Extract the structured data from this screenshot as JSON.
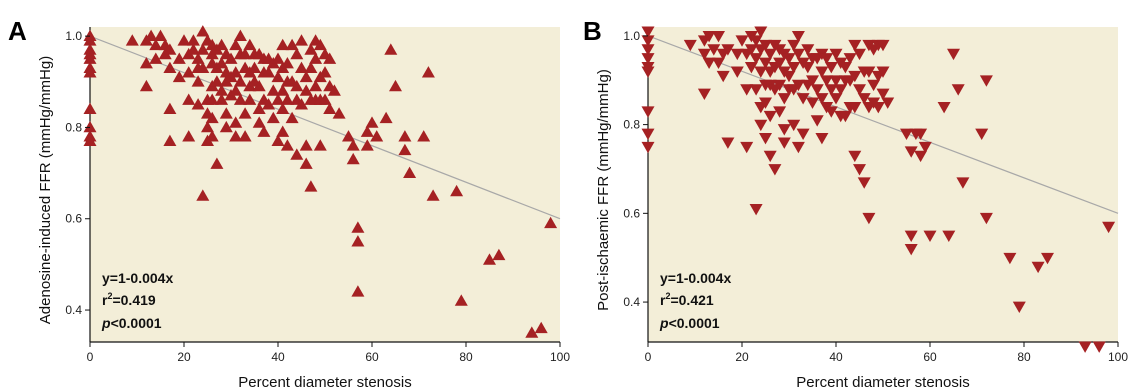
{
  "chart_data": [
    {
      "panel_label": "A",
      "type": "scatter",
      "marker": "triangle-up",
      "xlabel": "Percent diameter stenosis",
      "ylabel": "Adenosine-induced FFR (mmHg/mmHg)",
      "xlim": [
        0,
        100
      ],
      "ylim": [
        0.33,
        1.02
      ],
      "xticks": [
        "0",
        "20",
        "40",
        "60",
        "80",
        "100"
      ],
      "yticks": [
        "0.4",
        "0.6",
        "0.8",
        "1.0"
      ],
      "fit_line": {
        "intercept": 1.0,
        "slope": -0.004
      },
      "annotation": {
        "equation": "y=1-0.004x",
        "r_prefix": "r",
        "r_exp": "2",
        "r_value": "=0.419",
        "p_italic": "p",
        "p_value": "<0.0001"
      },
      "background_color": "#f3eed8",
      "marker_color": "#a52123",
      "line_color": "#a8a8a8",
      "points": [
        [
          0,
          1.0
        ],
        [
          0,
          0.99
        ],
        [
          0,
          0.97
        ],
        [
          0,
          0.96
        ],
        [
          0,
          0.95
        ],
        [
          0,
          0.93
        ],
        [
          0,
          0.92
        ],
        [
          0,
          0.84
        ],
        [
          0,
          0.8
        ],
        [
          0,
          0.78
        ],
        [
          0,
          0.77
        ],
        [
          9,
          0.99
        ],
        [
          12,
          0.99
        ],
        [
          12,
          0.94
        ],
        [
          12,
          0.89
        ],
        [
          13,
          1.0
        ],
        [
          14,
          0.98
        ],
        [
          14,
          0.95
        ],
        [
          15,
          1.0
        ],
        [
          16,
          0.98
        ],
        [
          16,
          0.96
        ],
        [
          17,
          0.97
        ],
        [
          17,
          0.93
        ],
        [
          17,
          0.84
        ],
        [
          17,
          0.77
        ],
        [
          19,
          0.95
        ],
        [
          19,
          0.91
        ],
        [
          20,
          0.99
        ],
        [
          21,
          0.96
        ],
        [
          21,
          0.92
        ],
        [
          21,
          0.86
        ],
        [
          21,
          0.78
        ],
        [
          22,
          0.99
        ],
        [
          22,
          0.97
        ],
        [
          23,
          0.95
        ],
        [
          23,
          0.93
        ],
        [
          23,
          0.9
        ],
        [
          23,
          0.85
        ],
        [
          24,
          1.01
        ],
        [
          24,
          0.97
        ],
        [
          24,
          0.93
        ],
        [
          24,
          0.65
        ],
        [
          25,
          0.99
        ],
        [
          25,
          0.86
        ],
        [
          25,
          0.83
        ],
        [
          25,
          0.8
        ],
        [
          25,
          0.77
        ],
        [
          26,
          0.98
        ],
        [
          26,
          0.96
        ],
        [
          26,
          0.94
        ],
        [
          26,
          0.89
        ],
        [
          26,
          0.86
        ],
        [
          26,
          0.82
        ],
        [
          26,
          0.78
        ],
        [
          27,
          0.97
        ],
        [
          27,
          0.93
        ],
        [
          27,
          0.9
        ],
        [
          27,
          0.72
        ],
        [
          28,
          0.98
        ],
        [
          28,
          0.94
        ],
        [
          28,
          0.88
        ],
        [
          28,
          0.86
        ],
        [
          29,
          0.96
        ],
        [
          29,
          0.92
        ],
        [
          29,
          0.9
        ],
        [
          29,
          0.83
        ],
        [
          29,
          0.8
        ],
        [
          30,
          0.95
        ],
        [
          30,
          0.91
        ],
        [
          30,
          0.87
        ],
        [
          31,
          0.98
        ],
        [
          31,
          0.92
        ],
        [
          31,
          0.88
        ],
        [
          31,
          0.81
        ],
        [
          31,
          0.78
        ],
        [
          32,
          1.0
        ],
        [
          32,
          0.96
        ],
        [
          32,
          0.9
        ],
        [
          32,
          0.86
        ],
        [
          33,
          0.96
        ],
        [
          33,
          0.93
        ],
        [
          33,
          0.83
        ],
        [
          33,
          0.78
        ],
        [
          34,
          0.98
        ],
        [
          34,
          0.92
        ],
        [
          34,
          0.89
        ],
        [
          34,
          0.86
        ],
        [
          35,
          0.96
        ],
        [
          35,
          0.93
        ],
        [
          35,
          0.9
        ],
        [
          36,
          0.96
        ],
        [
          36,
          0.89
        ],
        [
          36,
          0.84
        ],
        [
          36,
          0.81
        ],
        [
          37,
          0.95
        ],
        [
          37,
          0.92
        ],
        [
          37,
          0.86
        ],
        [
          37,
          0.79
        ],
        [
          38,
          0.95
        ],
        [
          38,
          0.92
        ],
        [
          38,
          0.85
        ],
        [
          39,
          0.94
        ],
        [
          39,
          0.88
        ],
        [
          39,
          0.82
        ],
        [
          40,
          0.95
        ],
        [
          40,
          0.91
        ],
        [
          40,
          0.86
        ],
        [
          40,
          0.77
        ],
        [
          41,
          0.98
        ],
        [
          41,
          0.93
        ],
        [
          41,
          0.88
        ],
        [
          41,
          0.84
        ],
        [
          41,
          0.79
        ],
        [
          42,
          0.94
        ],
        [
          42,
          0.9
        ],
        [
          42,
          0.86
        ],
        [
          42,
          0.76
        ],
        [
          43,
          0.98
        ],
        [
          43,
          0.9
        ],
        [
          43,
          0.82
        ],
        [
          44,
          0.96
        ],
        [
          44,
          0.89
        ],
        [
          44,
          0.86
        ],
        [
          44,
          0.74
        ],
        [
          45,
          0.99
        ],
        [
          45,
          0.93
        ],
        [
          45,
          0.85
        ],
        [
          46,
          0.91
        ],
        [
          46,
          0.88
        ],
        [
          46,
          0.76
        ],
        [
          46,
          0.72
        ],
        [
          47,
          0.97
        ],
        [
          47,
          0.93
        ],
        [
          47,
          0.86
        ],
        [
          47,
          0.67
        ],
        [
          48,
          0.99
        ],
        [
          48,
          0.95
        ],
        [
          48,
          0.89
        ],
        [
          48,
          0.86
        ],
        [
          49,
          0.98
        ],
        [
          49,
          0.91
        ],
        [
          49,
          0.86
        ],
        [
          49,
          0.76
        ],
        [
          50,
          0.96
        ],
        [
          50,
          0.92
        ],
        [
          50,
          0.86
        ],
        [
          51,
          0.95
        ],
        [
          51,
          0.89
        ],
        [
          51,
          0.84
        ],
        [
          52,
          0.88
        ],
        [
          53,
          0.83
        ],
        [
          55,
          0.78
        ],
        [
          56,
          0.76
        ],
        [
          56,
          0.73
        ],
        [
          57,
          0.58
        ],
        [
          57,
          0.55
        ],
        [
          57,
          0.44
        ],
        [
          59,
          0.79
        ],
        [
          59,
          0.76
        ],
        [
          60,
          0.81
        ],
        [
          61,
          0.78
        ],
        [
          63,
          0.82
        ],
        [
          64,
          0.97
        ],
        [
          65,
          0.89
        ],
        [
          67,
          0.78
        ],
        [
          67,
          0.75
        ],
        [
          68,
          0.7
        ],
        [
          71,
          0.78
        ],
        [
          72,
          0.92
        ],
        [
          73,
          0.65
        ],
        [
          78,
          0.66
        ],
        [
          79,
          0.42
        ],
        [
          85,
          0.51
        ],
        [
          87,
          0.52
        ],
        [
          94,
          0.35
        ],
        [
          96,
          0.36
        ],
        [
          98,
          0.59
        ]
      ]
    },
    {
      "panel_label": "B",
      "type": "scatter",
      "marker": "triangle-down",
      "xlabel": "Percent diameter stenosis",
      "ylabel": "Post-ischaemic FFR (mmHg/mmHg)",
      "xlim": [
        0,
        100
      ],
      "ylim": [
        0.31,
        1.02
      ],
      "xticks": [
        "0",
        "20",
        "40",
        "60",
        "80",
        "100"
      ],
      "yticks": [
        "0.4",
        "0.6",
        "0.8",
        "1.0"
      ],
      "fit_line": {
        "intercept": 1.0,
        "slope": -0.004
      },
      "annotation": {
        "equation": "y=1-0.004x",
        "r_prefix": "r",
        "r_exp": "2",
        "r_value": "=0.421",
        "p_italic": "p",
        "p_value": "<0.0001"
      },
      "background_color": "#f3eed8",
      "marker_color": "#a52123",
      "line_color": "#a8a8a8",
      "points": [
        [
          0,
          1.01
        ],
        [
          0,
          0.99
        ],
        [
          0,
          0.97
        ],
        [
          0,
          0.95
        ],
        [
          0,
          0.93
        ],
        [
          0,
          0.92
        ],
        [
          0,
          0.83
        ],
        [
          0,
          0.78
        ],
        [
          0,
          0.75
        ],
        [
          9,
          0.98
        ],
        [
          12,
          0.99
        ],
        [
          12,
          0.96
        ],
        [
          12,
          0.87
        ],
        [
          13,
          1.0
        ],
        [
          13,
          0.94
        ],
        [
          14,
          0.97
        ],
        [
          15,
          1.0
        ],
        [
          15,
          0.94
        ],
        [
          16,
          0.96
        ],
        [
          16,
          0.91
        ],
        [
          17,
          0.97
        ],
        [
          17,
          0.76
        ],
        [
          19,
          0.96
        ],
        [
          19,
          0.92
        ],
        [
          20,
          0.99
        ],
        [
          21,
          0.96
        ],
        [
          21,
          0.88
        ],
        [
          21,
          0.75
        ],
        [
          22,
          1.0
        ],
        [
          22,
          0.97
        ],
        [
          22,
          0.93
        ],
        [
          23,
          0.99
        ],
        [
          23,
          0.95
        ],
        [
          23,
          0.88
        ],
        [
          23,
          0.61
        ],
        [
          24,
          1.01
        ],
        [
          24,
          0.97
        ],
        [
          24,
          0.92
        ],
        [
          24,
          0.84
        ],
        [
          24,
          0.8
        ],
        [
          25,
          0.98
        ],
        [
          25,
          0.94
        ],
        [
          25,
          0.89
        ],
        [
          25,
          0.85
        ],
        [
          25,
          0.77
        ],
        [
          26,
          0.96
        ],
        [
          26,
          0.92
        ],
        [
          26,
          0.89
        ],
        [
          26,
          0.82
        ],
        [
          26,
          0.73
        ],
        [
          27,
          0.98
        ],
        [
          27,
          0.93
        ],
        [
          27,
          0.88
        ],
        [
          27,
          0.7
        ],
        [
          28,
          0.97
        ],
        [
          28,
          0.94
        ],
        [
          28,
          0.89
        ],
        [
          28,
          0.83
        ],
        [
          29,
          0.96
        ],
        [
          29,
          0.92
        ],
        [
          29,
          0.86
        ],
        [
          29,
          0.79
        ],
        [
          29,
          0.76
        ],
        [
          30,
          0.95
        ],
        [
          30,
          0.91
        ],
        [
          30,
          0.88
        ],
        [
          31,
          0.98
        ],
        [
          31,
          0.93
        ],
        [
          31,
          0.88
        ],
        [
          31,
          0.8
        ],
        [
          32,
          1.0
        ],
        [
          32,
          0.96
        ],
        [
          32,
          0.89
        ],
        [
          32,
          0.75
        ],
        [
          33,
          0.94
        ],
        [
          33,
          0.86
        ],
        [
          33,
          0.78
        ],
        [
          34,
          0.97
        ],
        [
          34,
          0.93
        ],
        [
          34,
          0.89
        ],
        [
          35,
          0.95
        ],
        [
          35,
          0.9
        ],
        [
          35,
          0.85
        ],
        [
          36,
          0.95
        ],
        [
          36,
          0.88
        ],
        [
          36,
          0.81
        ],
        [
          37,
          0.96
        ],
        [
          37,
          0.92
        ],
        [
          37,
          0.86
        ],
        [
          37,
          0.77
        ],
        [
          38,
          0.95
        ],
        [
          38,
          0.9
        ],
        [
          38,
          0.84
        ],
        [
          39,
          0.93
        ],
        [
          39,
          0.88
        ],
        [
          39,
          0.83
        ],
        [
          40,
          0.96
        ],
        [
          40,
          0.9
        ],
        [
          40,
          0.86
        ],
        [
          41,
          0.94
        ],
        [
          41,
          0.88
        ],
        [
          41,
          0.82
        ],
        [
          42,
          0.93
        ],
        [
          42,
          0.9
        ],
        [
          42,
          0.82
        ],
        [
          43,
          0.95
        ],
        [
          43,
          0.9
        ],
        [
          43,
          0.84
        ],
        [
          44,
          0.98
        ],
        [
          44,
          0.91
        ],
        [
          44,
          0.84
        ],
        [
          44,
          0.73
        ],
        [
          45,
          0.96
        ],
        [
          45,
          0.88
        ],
        [
          45,
          0.7
        ],
        [
          46,
          0.92
        ],
        [
          46,
          0.86
        ],
        [
          46,
          0.67
        ],
        [
          47,
          0.98
        ],
        [
          47,
          0.92
        ],
        [
          47,
          0.84
        ],
        [
          47,
          0.59
        ],
        [
          48,
          0.97
        ],
        [
          48,
          0.89
        ],
        [
          48,
          0.85
        ],
        [
          49,
          0.98
        ],
        [
          49,
          0.91
        ],
        [
          49,
          0.84
        ],
        [
          50,
          0.98
        ],
        [
          50,
          0.92
        ],
        [
          50,
          0.87
        ],
        [
          51,
          0.85
        ],
        [
          55,
          0.78
        ],
        [
          56,
          0.74
        ],
        [
          56,
          0.55
        ],
        [
          56,
          0.52
        ],
        [
          57,
          0.78
        ],
        [
          58,
          0.78
        ],
        [
          58,
          0.73
        ],
        [
          59,
          0.75
        ],
        [
          60,
          0.55
        ],
        [
          63,
          0.84
        ],
        [
          64,
          0.55
        ],
        [
          65,
          0.96
        ],
        [
          66,
          0.88
        ],
        [
          67,
          0.67
        ],
        [
          71,
          0.78
        ],
        [
          72,
          0.9
        ],
        [
          72,
          0.59
        ],
        [
          77,
          0.5
        ],
        [
          79,
          0.39
        ],
        [
          83,
          0.48
        ],
        [
          85,
          0.5
        ],
        [
          93,
          0.3
        ],
        [
          96,
          0.3
        ],
        [
          98,
          0.57
        ]
      ]
    }
  ]
}
